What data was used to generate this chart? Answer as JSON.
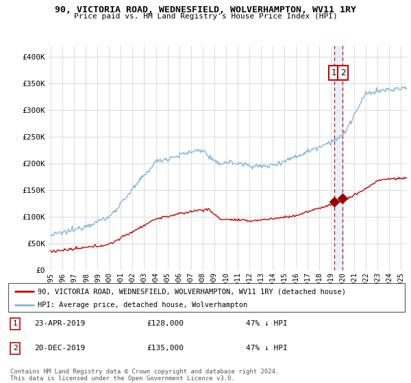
{
  "title": "90, VICTORIA ROAD, WEDNESFIELD, WOLVERHAMPTON, WV11 1RY",
  "subtitle": "Price paid vs. HM Land Registry's House Price Index (HPI)",
  "ylabel_ticks": [
    "£0",
    "£50K",
    "£100K",
    "£150K",
    "£200K",
    "£250K",
    "£300K",
    "£350K",
    "£400K"
  ],
  "ytick_values": [
    0,
    50000,
    100000,
    150000,
    200000,
    250000,
    300000,
    350000,
    400000
  ],
  "ylim": [
    0,
    420000
  ],
  "xlim_start": 1994.7,
  "xlim_end": 2025.5,
  "hpi_color": "#7EB5D6",
  "price_color": "#CC0000",
  "marker_color": "#990000",
  "dashed_line_color": "#CC0000",
  "annotation_box_color": "#CC0000",
  "shading_color": "#E8F0F8",
  "legend_label_price": "90, VICTORIA ROAD, WEDNESFIELD, WOLVERHAMPTON, WV11 1RY (detached house)",
  "legend_label_hpi": "HPI: Average price, detached house, Wolverhampton",
  "transaction1_label": "1",
  "transaction1_date": "23-APR-2019",
  "transaction1_price": "£128,000",
  "transaction1_hpi": "47% ↓ HPI",
  "transaction2_label": "2",
  "transaction2_date": "20-DEC-2019",
  "transaction2_price": "£135,000",
  "transaction2_hpi": "47% ↓ HPI",
  "footer": "Contains HM Land Registry data © Crown copyright and database right 2024.\nThis data is licensed under the Open Government Licence v3.0.",
  "xtick_years": [
    1995,
    1996,
    1997,
    1998,
    1999,
    2000,
    2001,
    2002,
    2003,
    2004,
    2005,
    2006,
    2007,
    2008,
    2009,
    2010,
    2011,
    2012,
    2013,
    2014,
    2015,
    2016,
    2017,
    2018,
    2019,
    2020,
    2021,
    2022,
    2023,
    2024,
    2025
  ],
  "trans1_x": 2019.31,
  "trans1_y": 128000,
  "trans2_x": 2019.97,
  "trans2_y": 135000
}
